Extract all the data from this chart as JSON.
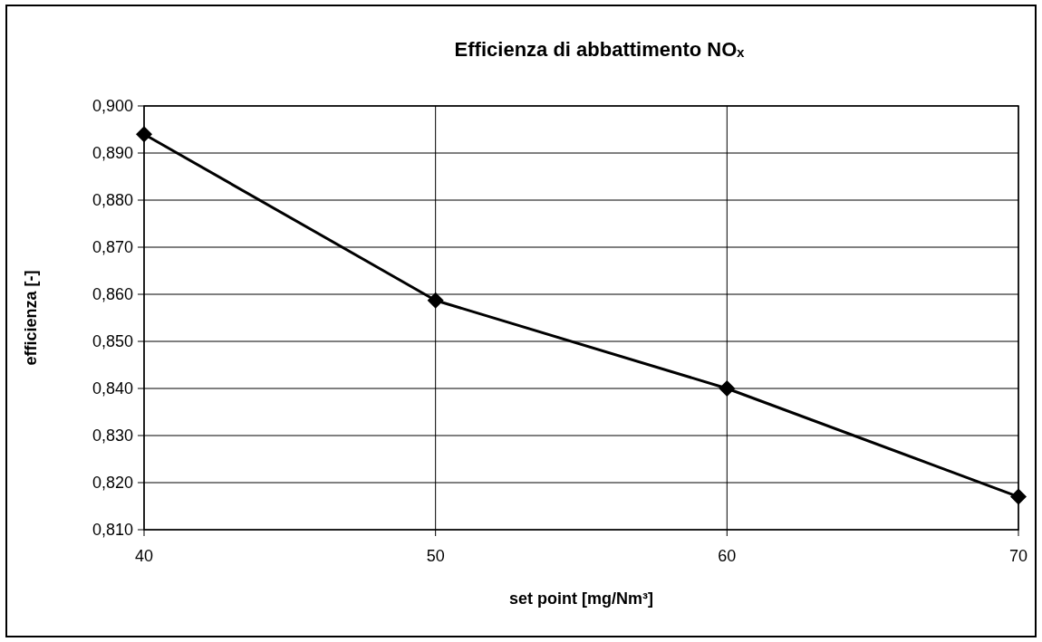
{
  "chart_data": {
    "type": "line",
    "title": "Efficienza di abbattimento NOₓ",
    "xlabel": "set point [mg/Nm³]",
    "ylabel": "efficienza [-]",
    "x": [
      40,
      50,
      60,
      70
    ],
    "series": [
      {
        "color": "#000000",
        "values": [
          0.894,
          0.8587,
          0.84,
          0.817
        ]
      }
    ],
    "xlim": [
      40,
      70
    ],
    "xticks": [
      40,
      50,
      60,
      70
    ],
    "ylim": [
      0.81,
      0.9
    ],
    "yticks": [
      {
        "value": 0.81,
        "label": "0,810"
      },
      {
        "value": 0.82,
        "label": "0,820"
      },
      {
        "value": 0.83,
        "label": "0,830"
      },
      {
        "value": 0.84,
        "label": "0,840"
      },
      {
        "value": 0.85,
        "label": "0,850"
      },
      {
        "value": 0.86,
        "label": "0,860"
      },
      {
        "value": 0.87,
        "label": "0,870"
      },
      {
        "value": 0.88,
        "label": "0,880"
      },
      {
        "value": 0.89,
        "label": "0,890"
      },
      {
        "value": 0.9,
        "label": "0,900"
      }
    ],
    "grid": true,
    "marker": "diamond",
    "line_style": "solid"
  }
}
